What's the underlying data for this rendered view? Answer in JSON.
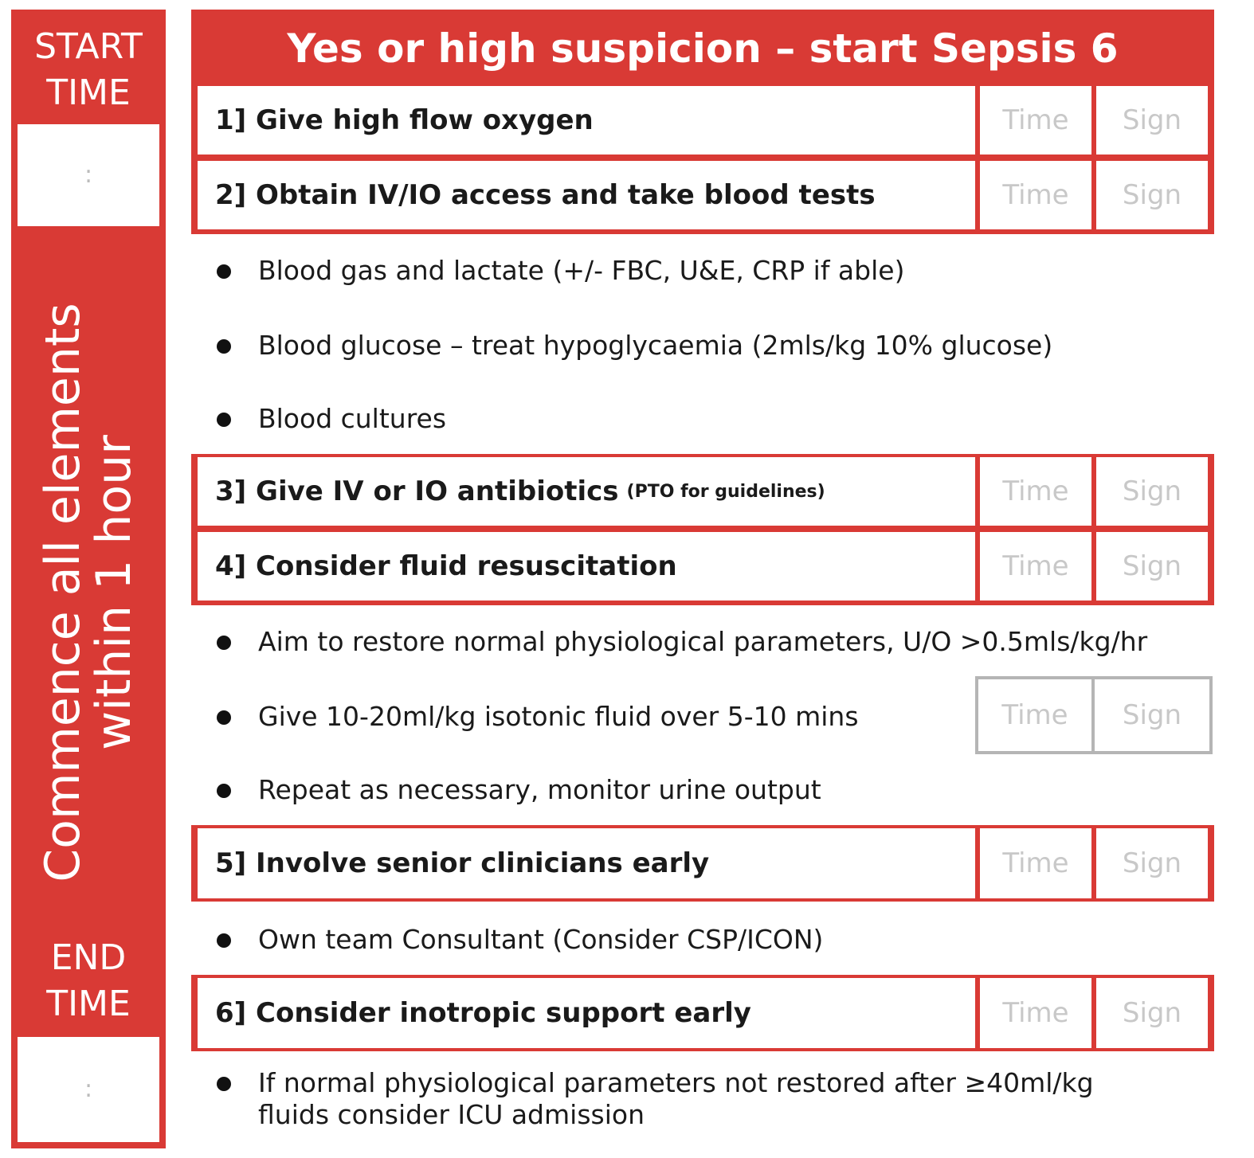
{
  "sidebar": {
    "start_time_label": [
      "START",
      "TIME"
    ],
    "start_time_value": ":",
    "vertical_text": [
      "Commence all elements",
      "within 1 hour"
    ],
    "end_time_label": [
      "END",
      "TIME"
    ],
    "end_time_value": ":"
  },
  "title": "Yes or high suspicion – start Sepsis 6",
  "steps": [
    {
      "label": "1] Give high flow oxygen",
      "note": "",
      "time": "Time",
      "sign": "Sign"
    },
    {
      "label": "2] Obtain IV/IO access and take blood tests",
      "note": "",
      "time": "Time",
      "sign": "Sign"
    },
    {
      "label": "3] Give IV or IO antibiotics",
      "note": "(PTO for guidelines)",
      "time": "Time",
      "sign": "Sign"
    },
    {
      "label": "4] Consider fluid resuscitation",
      "note": "",
      "time": "Time",
      "sign": "Sign"
    },
    {
      "label": "5] Involve senior clinicians early",
      "note": "",
      "time": "Time",
      "sign": "Sign"
    },
    {
      "label": "6] Consider inotropic support early",
      "note": "",
      "time": "Time",
      "sign": "Sign"
    }
  ],
  "bullets_blood": [
    "Blood gas and lactate (+/- FBC, U&E, CRP if able)",
    "Blood glucose – treat hypoglycaemia (2mls/kg 10% glucose)",
    "Blood cultures"
  ],
  "bullets_fluid": [
    "Aim to restore normal physiological parameters, U/O >0.5mls/kg/hr",
    "Give 10-20ml/kg isotonic fluid over 5-10 mins",
    "Repeat as necessary, monitor urine output"
  ],
  "fluid_box": {
    "time": "Time",
    "sign": "Sign"
  },
  "bullets_senior": [
    "Own team Consultant (Consider CSP/ICON)"
  ],
  "bullets_inotrope": [
    "If normal physiological parameters not restored after ≥40ml/kg",
    "fluids consider ICU admission"
  ],
  "colors": {
    "accent": "#d93a35",
    "grey_border": "#b5b5b5",
    "placeholder": "#c8c8c8"
  }
}
